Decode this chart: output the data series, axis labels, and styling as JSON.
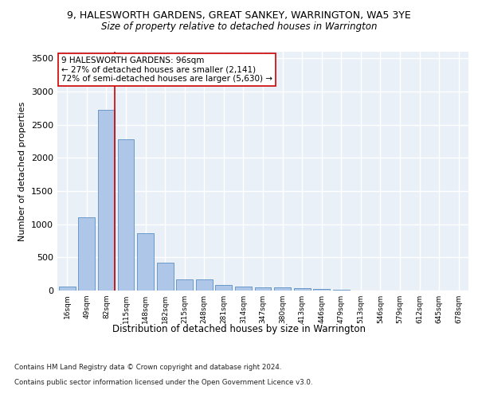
{
  "title1": "9, HALESWORTH GARDENS, GREAT SANKEY, WARRINGTON, WA5 3YE",
  "title2": "Size of property relative to detached houses in Warrington",
  "xlabel": "Distribution of detached houses by size in Warrington",
  "ylabel": "Number of detached properties",
  "categories": [
    "16sqm",
    "49sqm",
    "82sqm",
    "115sqm",
    "148sqm",
    "182sqm",
    "215sqm",
    "248sqm",
    "281sqm",
    "314sqm",
    "347sqm",
    "380sqm",
    "413sqm",
    "446sqm",
    "479sqm",
    "513sqm",
    "546sqm",
    "579sqm",
    "612sqm",
    "645sqm",
    "678sqm"
  ],
  "values": [
    55,
    1100,
    2730,
    2280,
    870,
    420,
    170,
    170,
    90,
    65,
    50,
    45,
    35,
    28,
    10,
    0,
    0,
    0,
    0,
    0,
    0
  ],
  "bar_color": "#aec6e8",
  "bar_edge_color": "#5a8fc3",
  "vline_color": "#cc0000",
  "annotation_text": "9 HALESWORTH GARDENS: 96sqm\n← 27% of detached houses are smaller (2,141)\n72% of semi-detached houses are larger (5,630) →",
  "annotation_box_color": "#ffffff",
  "annotation_box_edge_color": "#cc0000",
  "ylim": [
    0,
    3600
  ],
  "yticks": [
    0,
    500,
    1000,
    1500,
    2000,
    2500,
    3000,
    3500
  ],
  "background_color": "#eaf0f8",
  "grid_color": "#ffffff",
  "footnote1": "Contains HM Land Registry data © Crown copyright and database right 2024.",
  "footnote2": "Contains public sector information licensed under the Open Government Licence v3.0."
}
